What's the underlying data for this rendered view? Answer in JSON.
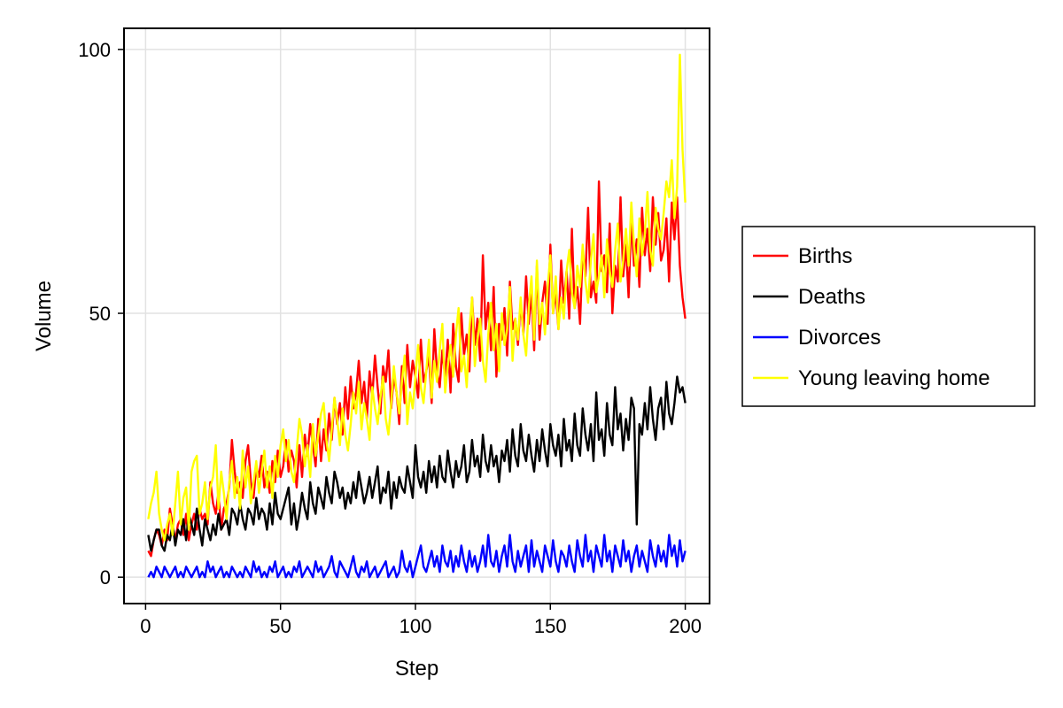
{
  "chart_data": {
    "type": "line",
    "xlabel": "Step",
    "ylabel": "Volume",
    "xlim": [
      -8,
      209
    ],
    "ylim": [
      -5,
      104
    ],
    "xticks": [
      0,
      50,
      100,
      150,
      200
    ],
    "yticks": [
      0,
      50,
      100
    ],
    "grid": true,
    "legend_position": "right",
    "x": [
      1,
      2,
      3,
      4,
      5,
      6,
      7,
      8,
      9,
      10,
      11,
      12,
      13,
      14,
      15,
      16,
      17,
      18,
      19,
      20,
      21,
      22,
      23,
      24,
      25,
      26,
      27,
      28,
      29,
      30,
      31,
      32,
      33,
      34,
      35,
      36,
      37,
      38,
      39,
      40,
      41,
      42,
      43,
      44,
      45,
      46,
      47,
      48,
      49,
      50,
      51,
      52,
      53,
      54,
      55,
      56,
      57,
      58,
      59,
      60,
      61,
      62,
      63,
      64,
      65,
      66,
      67,
      68,
      69,
      70,
      71,
      72,
      73,
      74,
      75,
      76,
      77,
      78,
      79,
      80,
      81,
      82,
      83,
      84,
      85,
      86,
      87,
      88,
      89,
      90,
      91,
      92,
      93,
      94,
      95,
      96,
      97,
      98,
      99,
      100,
      101,
      102,
      103,
      104,
      105,
      106,
      107,
      108,
      109,
      110,
      111,
      112,
      113,
      114,
      115,
      116,
      117,
      118,
      119,
      120,
      121,
      122,
      123,
      124,
      125,
      126,
      127,
      128,
      129,
      130,
      131,
      132,
      133,
      134,
      135,
      136,
      137,
      138,
      139,
      140,
      141,
      142,
      143,
      144,
      145,
      146,
      147,
      148,
      149,
      150,
      151,
      152,
      153,
      154,
      155,
      156,
      157,
      158,
      159,
      160,
      161,
      162,
      163,
      164,
      165,
      166,
      167,
      168,
      169,
      170,
      171,
      172,
      173,
      174,
      175,
      176,
      177,
      178,
      179,
      180,
      181,
      182,
      183,
      184,
      185,
      186,
      187,
      188,
      189,
      190,
      191,
      192,
      193,
      194,
      195,
      196,
      197,
      198,
      199,
      200
    ],
    "series": [
      {
        "name": "Births",
        "color": "#ff0000",
        "values": [
          5,
          4,
          7,
          9,
          8,
          6,
          9,
          7,
          13,
          10,
          7,
          10,
          11,
          8,
          12,
          7,
          10,
          12,
          9,
          13,
          11,
          12,
          10,
          18,
          14,
          12,
          16,
          9,
          13,
          14,
          17,
          26,
          20,
          16,
          18,
          15,
          22,
          25,
          18,
          15,
          21,
          19,
          23,
          17,
          20,
          16,
          22,
          18,
          24,
          19,
          21,
          26,
          20,
          24,
          22,
          17,
          25,
          19,
          27,
          23,
          29,
          25,
          21,
          30,
          22,
          28,
          24,
          31,
          26,
          34,
          29,
          33,
          27,
          36,
          30,
          38,
          32,
          35,
          41,
          33,
          37,
          30,
          39,
          34,
          42,
          36,
          31,
          40,
          37,
          43,
          32,
          38,
          35,
          29,
          40,
          33,
          44,
          36,
          41,
          38,
          34,
          45,
          37,
          39,
          42,
          33,
          47,
          39,
          36,
          43,
          38,
          45,
          35,
          48,
          40,
          37,
          50,
          42,
          46,
          39,
          53,
          44,
          49,
          41,
          61,
          47,
          52,
          43,
          55,
          38,
          48,
          45,
          51,
          42,
          56,
          47,
          49,
          44,
          52,
          46,
          57,
          48,
          54,
          43,
          59,
          45,
          52,
          56,
          48,
          63,
          50,
          54,
          47,
          60,
          52,
          58,
          49,
          66,
          51,
          55,
          48,
          62,
          57,
          70,
          53,
          56,
          52,
          75,
          58,
          61,
          54,
          67,
          50,
          59,
          56,
          72,
          57,
          63,
          53,
          68,
          59,
          64,
          55,
          70,
          61,
          66,
          58,
          72,
          63,
          69,
          60,
          62,
          68,
          56,
          71,
          64,
          72,
          59,
          53,
          49
        ]
      },
      {
        "name": "Deaths",
        "color": "#000000",
        "values": [
          8,
          5,
          7,
          9,
          9,
          6,
          5,
          8,
          7,
          10,
          6,
          9,
          8,
          11,
          7,
          12,
          10,
          8,
          13,
          9,
          6,
          11,
          9,
          7,
          10,
          8,
          12,
          9,
          10,
          11,
          8,
          13,
          12,
          10,
          14,
          11,
          9,
          13,
          12,
          10,
          15,
          11,
          13,
          12,
          9,
          14,
          10,
          16,
          12,
          11,
          13,
          15,
          17,
          10,
          14,
          9,
          12,
          16,
          13,
          11,
          18,
          14,
          12,
          17,
          15,
          13,
          19,
          16,
          14,
          20,
          18,
          15,
          17,
          13,
          16,
          14,
          18,
          15,
          20,
          17,
          14,
          16,
          19,
          15,
          18,
          21,
          14,
          17,
          16,
          20,
          13,
          18,
          15,
          19,
          17,
          16,
          21,
          18,
          15,
          25,
          19,
          17,
          20,
          16,
          22,
          18,
          21,
          17,
          23,
          19,
          18,
          24,
          20,
          17,
          22,
          19,
          21,
          25,
          18,
          20,
          26,
          21,
          23,
          19,
          27,
          22,
          20,
          25,
          21,
          23,
          18,
          24,
          22,
          26,
          20,
          28,
          23,
          21,
          29,
          24,
          22,
          27,
          23,
          20,
          26,
          22,
          28,
          24,
          21,
          29,
          25,
          23,
          27,
          21,
          30,
          24,
          26,
          22,
          31,
          25,
          23,
          32,
          27,
          24,
          29,
          22,
          35,
          26,
          28,
          23,
          33,
          27,
          25,
          36,
          28,
          31,
          24,
          30,
          26,
          34,
          32,
          10,
          29,
          27,
          33,
          28,
          36,
          30,
          26,
          32,
          34,
          28,
          37,
          31,
          29,
          33,
          38,
          35,
          36,
          33
        ]
      },
      {
        "name": "Divorces",
        "color": "#0000ff",
        "values": [
          0,
          1,
          0,
          2,
          1,
          0,
          2,
          1,
          0,
          1,
          2,
          0,
          1,
          0,
          2,
          1,
          0,
          1,
          2,
          0,
          1,
          0,
          3,
          1,
          2,
          0,
          1,
          2,
          0,
          1,
          0,
          2,
          1,
          0,
          1,
          0,
          2,
          1,
          0,
          3,
          1,
          2,
          0,
          1,
          0,
          2,
          1,
          3,
          0,
          1,
          2,
          0,
          1,
          0,
          2,
          1,
          3,
          0,
          1,
          2,
          1,
          0,
          3,
          1,
          2,
          0,
          1,
          2,
          4,
          1,
          0,
          3,
          2,
          1,
          0,
          2,
          4,
          1,
          0,
          2,
          1,
          3,
          0,
          1,
          2,
          0,
          1,
          2,
          3,
          0,
          1,
          2,
          0,
          1,
          5,
          2,
          1,
          3,
          0,
          2,
          4,
          6,
          2,
          1,
          3,
          5,
          2,
          4,
          1,
          6,
          3,
          2,
          5,
          1,
          4,
          2,
          6,
          3,
          1,
          5,
          2,
          4,
          1,
          3,
          6,
          2,
          8,
          3,
          2,
          5,
          1,
          4,
          6,
          2,
          8,
          3,
          1,
          5,
          2,
          4,
          6,
          1,
          7,
          2,
          5,
          3,
          1,
          6,
          4,
          2,
          7,
          3,
          1,
          5,
          4,
          2,
          6,
          3,
          1,
          7,
          4,
          2,
          8,
          3,
          5,
          1,
          6,
          4,
          2,
          8,
          3,
          5,
          1,
          6,
          4,
          2,
          7,
          3,
          5,
          1,
          4,
          6,
          2,
          5,
          3,
          1,
          7,
          4,
          2,
          6,
          3,
          5,
          2,
          8,
          4,
          6,
          2,
          7,
          3,
          5
        ]
      },
      {
        "name": "Young leaving home",
        "color": "#ffff00",
        "values": [
          11,
          14,
          16,
          20,
          12,
          9,
          7,
          10,
          12,
          8,
          14,
          20,
          10,
          15,
          17,
          9,
          20,
          22,
          23,
          12,
          14,
          18,
          11,
          17,
          19,
          25,
          13,
          20,
          16,
          11,
          18,
          22,
          15,
          19,
          13,
          24,
          17,
          21,
          14,
          18,
          22,
          16,
          20,
          24,
          17,
          21,
          15,
          23,
          19,
          25,
          28,
          22,
          26,
          20,
          18,
          24,
          30,
          27,
          21,
          25,
          19,
          29,
          23,
          27,
          31,
          33,
          26,
          22,
          28,
          34,
          30,
          25,
          32,
          27,
          24,
          29,
          35,
          31,
          37,
          28,
          33,
          30,
          26,
          36,
          32,
          29,
          34,
          38,
          30,
          27,
          33,
          40,
          35,
          31,
          37,
          42,
          29,
          35,
          32,
          38,
          44,
          36,
          33,
          39,
          45,
          34,
          41,
          37,
          43,
          48,
          35,
          40,
          44,
          38,
          46,
          51,
          39,
          42,
          36,
          47,
          53,
          40,
          45,
          49,
          41,
          37,
          46,
          52,
          43,
          48,
          39,
          50,
          44,
          47,
          55,
          41,
          49,
          45,
          53,
          46,
          42,
          51,
          57,
          45,
          60,
          48,
          52,
          46,
          55,
          61,
          50,
          57,
          47,
          53,
          49,
          58,
          62,
          54,
          51,
          59,
          55,
          63,
          56,
          52,
          60,
          65,
          54,
          57,
          61,
          53,
          64,
          58,
          55,
          62,
          67,
          56,
          60,
          66,
          59,
          71,
          63,
          57,
          68,
          61,
          65,
          73,
          62,
          59,
          70,
          66,
          64,
          69,
          75,
          72,
          79,
          68,
          74,
          99,
          81,
          71
        ]
      }
    ]
  }
}
